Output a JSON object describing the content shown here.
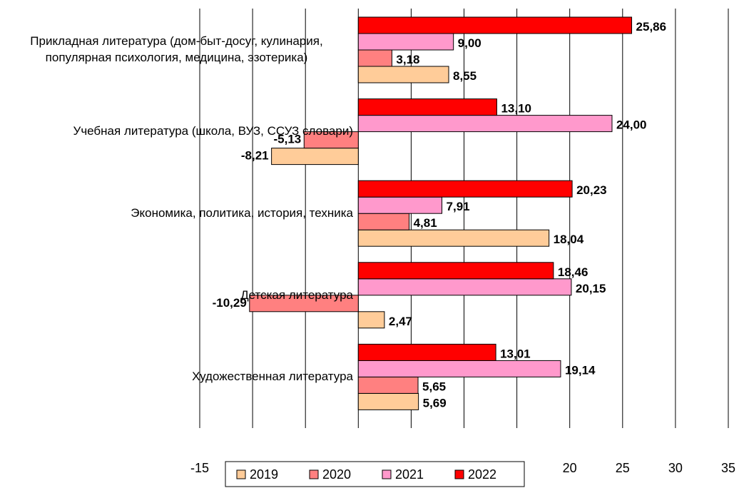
{
  "chart_data": {
    "type": "bar",
    "orientation": "horizontal",
    "categories": [
      "Прикладная литература (дом-быт-досуг, кулинария, популярная психология, медицина, эзотерика)",
      "Учебная литература (школа, ВУЗ, ССУЗ словари)",
      "Экономика, политика, история, техника",
      "Детская литература",
      "Художественная литература"
    ],
    "series": [
      {
        "name": "2019",
        "color": "#ffcc99",
        "values": [
          8.55,
          -8.21,
          18.04,
          2.47,
          5.69
        ],
        "value_labels": [
          "8,55",
          "-8,21",
          "18,04",
          "2,47",
          "5,69"
        ]
      },
      {
        "name": "2020",
        "color": "#ff8080",
        "values": [
          3.18,
          -5.13,
          4.81,
          -10.29,
          5.65
        ],
        "value_labels": [
          "3,18",
          "-5,13",
          "4,81",
          "-10,29",
          "5,65"
        ]
      },
      {
        "name": "2021",
        "color": "#ff99cc",
        "values": [
          9.0,
          24.0,
          7.91,
          20.15,
          19.14
        ],
        "value_labels": [
          "9,00",
          "24,00",
          "7,91",
          "20,15",
          "19,14"
        ]
      },
      {
        "name": "2022",
        "color": "#ff0000",
        "values": [
          25.86,
          13.1,
          20.23,
          18.46,
          13.01
        ],
        "value_labels": [
          "25,86",
          "13,10",
          "20,23",
          "18,46",
          "13,01"
        ]
      }
    ],
    "xlim": [
      -15,
      35
    ],
    "xticks": [
      -15,
      -10,
      -5,
      0,
      5,
      10,
      15,
      20,
      25,
      30,
      35
    ],
    "grid": true,
    "legend": "bottom"
  }
}
